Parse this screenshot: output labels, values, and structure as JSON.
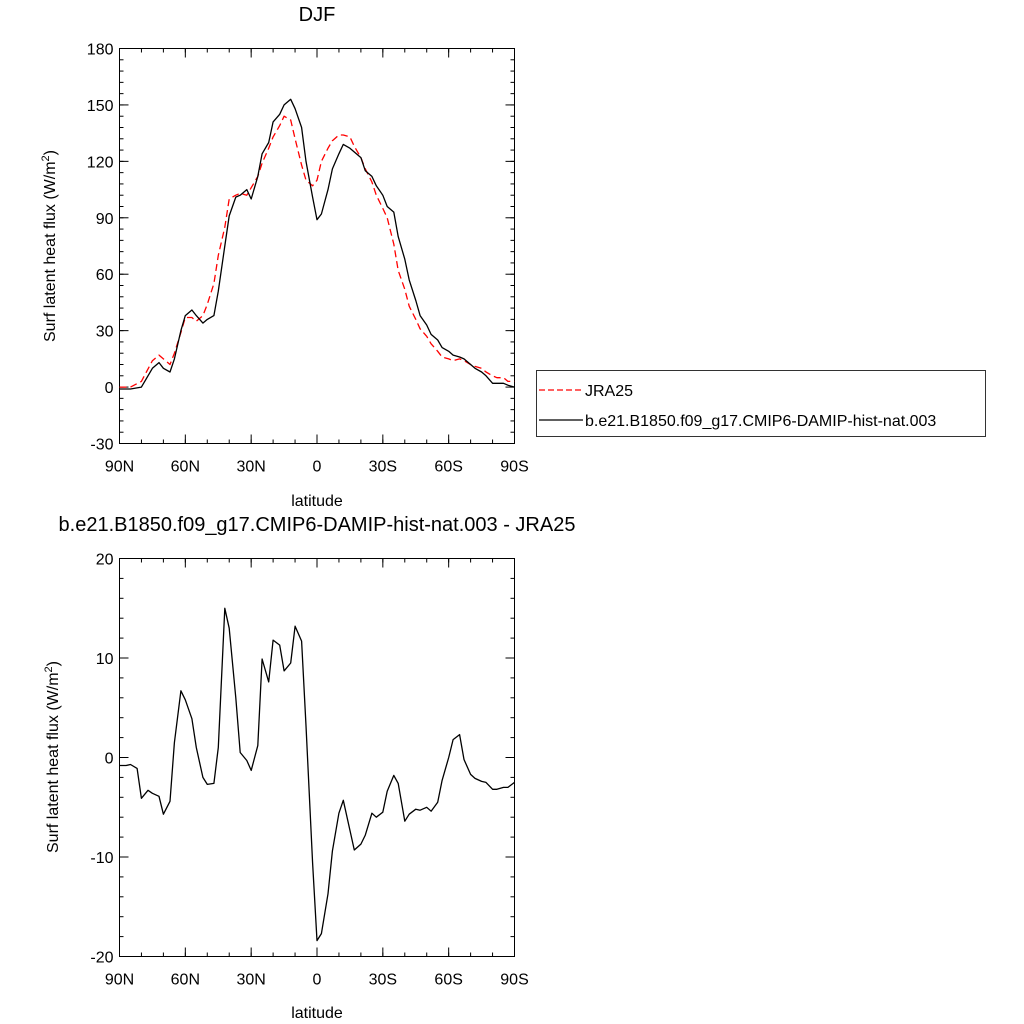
{
  "panels": {
    "top": {
      "title": "DJF",
      "xlabel": "latitude",
      "ylabel_main": "Surf latent heat flux (W/m",
      "ylabel_sup": "2",
      "ylabel_close": ")"
    },
    "bottom": {
      "title": "b.e21.B1850.f09_g17.CMIP6-DAMIP-hist-nat.003 - JRA25",
      "xlabel": "latitude",
      "ylabel_main": "Surf latent heat flux (W/m",
      "ylabel_sup": "2",
      "ylabel_close": ")"
    }
  },
  "legend": {
    "items": [
      {
        "label": "JRA25",
        "color": "#ff0000",
        "dash": "dashed"
      },
      {
        "label": "b.e21.B1850.f09_g17.CMIP6-DAMIP-hist-nat.003",
        "color": "#000000",
        "dash": "solid"
      }
    ]
  },
  "chart_data": [
    {
      "type": "line",
      "title": "DJF",
      "xlabel": "latitude",
      "ylabel": "Surf latent heat flux (W/m2)",
      "xlim": [
        90,
        -90
      ],
      "ylim": [
        -30,
        180
      ],
      "xticks": [
        90,
        60,
        30,
        0,
        -30,
        -60,
        -90
      ],
      "xtick_labels": [
        "90N",
        "60N",
        "30N",
        "0",
        "30S",
        "60S",
        "90S"
      ],
      "yticks": [
        -30,
        0,
        30,
        60,
        90,
        120,
        150,
        180
      ],
      "ytick_labels": [
        "-30",
        "0",
        "30",
        "60",
        "90",
        "120",
        "150",
        "180"
      ],
      "grid": false,
      "legend_position": "right",
      "series": [
        {
          "name": "JRA25",
          "color": "#ff0000",
          "dash": "dashed",
          "x": [
            90,
            85,
            80,
            75,
            72,
            70,
            67,
            65,
            62,
            60,
            57,
            55,
            52,
            50,
            47,
            45,
            42,
            40,
            37,
            35,
            32,
            30,
            27,
            25,
            22,
            20,
            17,
            15,
            12,
            10,
            7,
            5,
            2,
            0,
            -2,
            -5,
            -7,
            -10,
            -12,
            -15,
            -17,
            -20,
            -22,
            -25,
            -27,
            -30,
            -32,
            -35,
            -37,
            -40,
            -42,
            -45,
            -47,
            -50,
            -52,
            -55,
            -57,
            -60,
            -62,
            -65,
            -67,
            -70,
            -72,
            -75,
            -77,
            -80,
            -82,
            -85,
            -87,
            -90
          ],
          "y": [
            0,
            0,
            3,
            14,
            17,
            15,
            12,
            18,
            29,
            37,
            37,
            35,
            38,
            44,
            55,
            70,
            85,
            100,
            102,
            103,
            102,
            106,
            112,
            119,
            127,
            133,
            139,
            144,
            142,
            132,
            118,
            110,
            107,
            110,
            120,
            127,
            131,
            134,
            134,
            133,
            128,
            122,
            116,
            109,
            102,
            95,
            90,
            76,
            62,
            52,
            43,
            36,
            31,
            27,
            23,
            19,
            16,
            15,
            14,
            15,
            14,
            12,
            11,
            10,
            8,
            6,
            5,
            5,
            3,
            3
          ]
        },
        {
          "name": "b.e21.B1850.f09_g17.CMIP6-DAMIP-hist-nat.003",
          "color": "#000000",
          "dash": "solid",
          "x": [
            90,
            85,
            80,
            75,
            72,
            70,
            67,
            65,
            62,
            60,
            57,
            55,
            52,
            50,
            47,
            45,
            42,
            40,
            37,
            35,
            32,
            30,
            27,
            25,
            22,
            20,
            17,
            15,
            12,
            10,
            7,
            5,
            2,
            0,
            -2,
            -5,
            -7,
            -10,
            -12,
            -15,
            -17,
            -20,
            -22,
            -25,
            -27,
            -30,
            -32,
            -35,
            -37,
            -40,
            -42,
            -45,
            -47,
            -50,
            -52,
            -55,
            -57,
            -60,
            -62,
            -65,
            -67,
            -70,
            -72,
            -75,
            -77,
            -80,
            -82,
            -85,
            -87,
            -90
          ],
          "y": [
            -1,
            -1,
            0,
            10,
            13,
            10,
            8,
            15,
            30,
            38,
            41,
            38,
            34,
            36,
            38,
            51,
            75,
            91,
            101,
            102,
            105,
            100,
            112,
            124,
            130,
            141,
            145,
            150,
            153,
            148,
            138,
            120,
            101,
            89,
            92,
            105,
            116,
            124,
            129,
            127,
            125,
            122,
            115,
            112,
            107,
            102,
            96,
            93,
            80,
            68,
            57,
            46,
            38,
            33,
            28,
            25,
            21,
            19,
            17,
            16,
            15,
            12,
            10,
            8,
            6,
            2,
            2,
            2,
            1,
            0
          ]
        }
      ]
    },
    {
      "type": "line",
      "title": "b.e21.B1850.f09_g17.CMIP6-DAMIP-hist-nat.003 - JRA25",
      "xlabel": "latitude",
      "ylabel": "Surf latent heat flux (W/m2)",
      "xlim": [
        90,
        -90
      ],
      "ylim": [
        -20,
        20
      ],
      "xticks": [
        90,
        60,
        30,
        0,
        -30,
        -60,
        -90
      ],
      "xtick_labels": [
        "90N",
        "60N",
        "30N",
        "0",
        "30S",
        "60S",
        "90S"
      ],
      "yticks": [
        -20,
        -10,
        0,
        10,
        20
      ],
      "ytick_labels": [
        "-20",
        "-10",
        "0",
        "10",
        "20"
      ],
      "grid": false,
      "series": [
        {
          "color": "#000000",
          "dash": "solid",
          "x": [
            90,
            87,
            85,
            82,
            80,
            77,
            75,
            72,
            70,
            67,
            65,
            62,
            60,
            57,
            55,
            52,
            50,
            47,
            45,
            42,
            40,
            37,
            35,
            32,
            30,
            27,
            25,
            22,
            20,
            17,
            15,
            12,
            10,
            7,
            5,
            2,
            0,
            -2,
            -5,
            -7,
            -10,
            -12,
            -15,
            -17,
            -20,
            -22,
            -25,
            -27,
            -30,
            -32,
            -35,
            -37,
            -40,
            -42,
            -45,
            -47,
            -50,
            -52,
            -55,
            -57,
            -60,
            -62,
            -65,
            -67,
            -70,
            -72,
            -75,
            -77,
            -80,
            -82,
            -85,
            -87,
            -90
          ],
          "y": [
            -0.8,
            -0.8,
            -0.7,
            -1.1,
            -4.1,
            -3.3,
            -3.6,
            -3.9,
            -5.7,
            -4.4,
            1.5,
            6.7,
            5.8,
            3.9,
            1.0,
            -2.0,
            -2.7,
            -2.6,
            1.0,
            15.0,
            13.0,
            6.0,
            0.5,
            -0.3,
            -1.3,
            1.2,
            9.9,
            7.6,
            11.8,
            11.3,
            8.7,
            9.5,
            13.2,
            11.7,
            3.2,
            -10.6,
            -18.4,
            -17.7,
            -13.7,
            -9.4,
            -5.6,
            -4.3,
            -7.3,
            -9.3,
            -8.7,
            -7.8,
            -5.6,
            -6.0,
            -5.5,
            -3.4,
            -1.8,
            -2.6,
            -6.4,
            -5.7,
            -5.2,
            -5.3,
            -5.0,
            -5.4,
            -4.5,
            -2.3,
            0.0,
            1.8,
            2.3,
            -0.2,
            -1.7,
            -2.1,
            -2.4,
            -2.5,
            -3.2,
            -3.2,
            -3.0,
            -3.0,
            -2.5
          ]
        }
      ]
    }
  ]
}
